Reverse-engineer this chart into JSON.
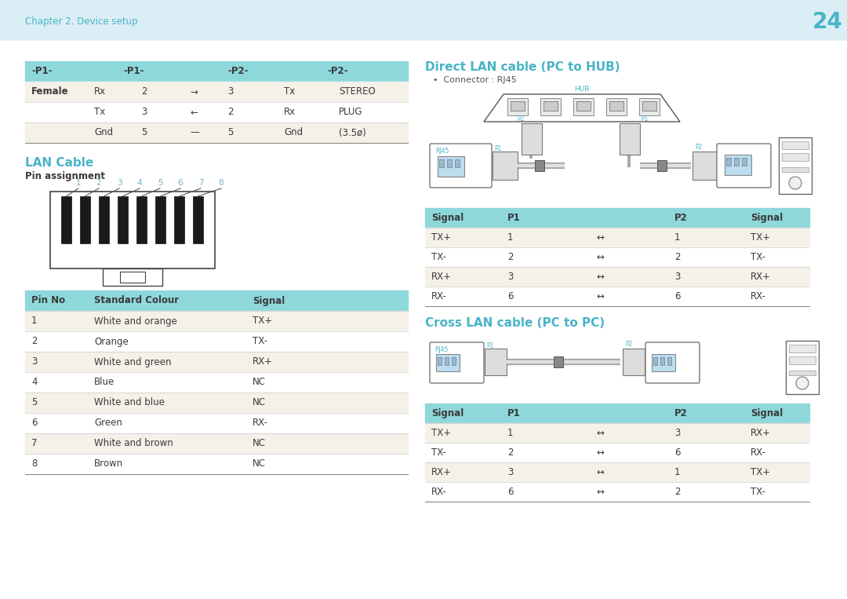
{
  "bg_color": "#daeef5",
  "content_bg": "#ffffff",
  "header_bg": "#8ed8dc",
  "row_alt_bg": "#f5f0e8",
  "row_bg": "#ffffff",
  "cyan_color": "#4ab4c8",
  "dark_text": "#3a3a3a",
  "page_number": "24",
  "chapter_text": "Chapter 2. Device setup",
  "top_table_headers": [
    "-P1-",
    "-P1-",
    "-P2-",
    "-P2-"
  ],
  "top_table_rows": [
    [
      "Female",
      "Rx",
      "2",
      "→",
      "3",
      "Tx",
      "STEREO"
    ],
    [
      "",
      "Tx",
      "3",
      "←",
      "2",
      "Rx",
      "PLUG"
    ],
    [
      "",
      "Gnd",
      "5",
      "—",
      "5",
      "Gnd",
      "(3.5ø)"
    ]
  ],
  "lan_cable_title": "LAN Cable",
  "pin_assignment_text": "Pin assignment",
  "pin_numbers": [
    "1",
    "2",
    "3",
    "4",
    "5",
    "6",
    "7",
    "8"
  ],
  "pin_table_headers": [
    "Pin No",
    "Standard Colour",
    "Signal"
  ],
  "pin_table_rows": [
    [
      "1",
      "White and orange",
      "TX+"
    ],
    [
      "2",
      "Orange",
      "TX-"
    ],
    [
      "3",
      "White and green",
      "RX+"
    ],
    [
      "4",
      "Blue",
      "NC"
    ],
    [
      "5",
      "White and blue",
      "NC"
    ],
    [
      "6",
      "Green",
      "RX-"
    ],
    [
      "7",
      "White and brown",
      "NC"
    ],
    [
      "8",
      "Brown",
      "NC"
    ]
  ],
  "direct_lan_title": "Direct LAN cable (PC to HUB)",
  "direct_connector": "Connector : RJ45",
  "direct_table_headers": [
    "Signal",
    "P1",
    "",
    "P2",
    "Signal"
  ],
  "direct_table_rows": [
    [
      "TX+",
      "1",
      "↔",
      "1",
      "TX+"
    ],
    [
      "TX-",
      "2",
      "↔",
      "2",
      "TX-"
    ],
    [
      "RX+",
      "3",
      "↔",
      "3",
      "RX+"
    ],
    [
      "RX-",
      "6",
      "↔",
      "6",
      "RX-"
    ]
  ],
  "cross_lan_title": "Cross LAN cable (PC to PC)",
  "cross_table_headers": [
    "Signal",
    "P1",
    "",
    "P2",
    "Signal"
  ],
  "cross_table_rows": [
    [
      "TX+",
      "1",
      "↔",
      "3",
      "RX+"
    ],
    [
      "TX-",
      "2",
      "↔",
      "6",
      "RX-"
    ],
    [
      "RX+",
      "3",
      "↔",
      "1",
      "TX+"
    ],
    [
      "RX-",
      "6",
      "↔",
      "2",
      "TX-"
    ]
  ]
}
